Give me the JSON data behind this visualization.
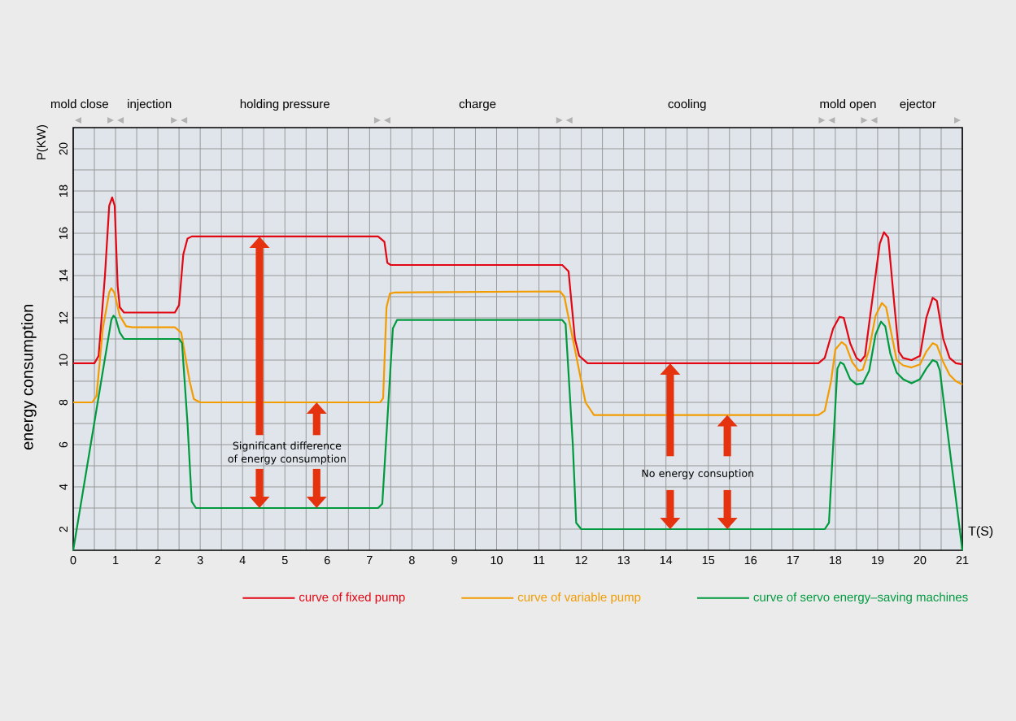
{
  "chart_data": {
    "type": "line",
    "xlabel": "T(S)",
    "ylabel": "energy consumption",
    "xlim": [
      0,
      21
    ],
    "ylim": [
      1,
      21
    ],
    "xticks": [
      0,
      1,
      2,
      3,
      4,
      5,
      6,
      7,
      8,
      9,
      10,
      11,
      12,
      13,
      14,
      15,
      16,
      17,
      18,
      19,
      20,
      21
    ],
    "yticks": [
      2,
      4,
      6,
      8,
      10,
      12,
      14,
      16,
      18,
      20
    ],
    "grid": true,
    "legend": "bottom",
    "marker": "none",
    "line_style": "solid",
    "series": [
      {
        "name": "curve of fixed pump",
        "color": "#e30613",
        "x": [
          0,
          0.5,
          0.6,
          0.75,
          0.85,
          0.92,
          0.98,
          1.05,
          1.1,
          1.2,
          2.4,
          2.5,
          2.6,
          2.7,
          2.8,
          7.2,
          7.35,
          7.42,
          7.5,
          11.55,
          11.7,
          11.85,
          11.95,
          12.15,
          17.6,
          17.75,
          17.95,
          18.1,
          18.2,
          18.35,
          18.5,
          18.6,
          18.7,
          18.85,
          19.05,
          19.15,
          19.25,
          19.4,
          19.5,
          19.6,
          19.8,
          20.0,
          20.15,
          20.3,
          20.4,
          20.55,
          20.7,
          20.85,
          21
        ],
        "values": [
          9.85,
          9.85,
          10.2,
          14,
          17.3,
          17.7,
          17.3,
          13.5,
          12.5,
          12.25,
          12.25,
          12.6,
          15,
          15.75,
          15.85,
          15.85,
          15.6,
          14.6,
          14.5,
          14.5,
          14.2,
          11,
          10.2,
          9.85,
          9.85,
          10.1,
          11.5,
          12.05,
          12,
          10.8,
          10.1,
          9.95,
          10.2,
          12.5,
          15.5,
          16.05,
          15.8,
          12.5,
          10.4,
          10.1,
          10.0,
          10.2,
          12,
          12.95,
          12.8,
          11,
          10.1,
          9.85,
          9.8
        ]
      },
      {
        "name": "curve of variable pump",
        "color": "#f39c00",
        "x": [
          0,
          0.45,
          0.55,
          0.7,
          0.85,
          0.9,
          0.97,
          1.1,
          1.25,
          1.4,
          2.4,
          2.55,
          2.75,
          2.85,
          3.0,
          7.25,
          7.32,
          7.4,
          7.48,
          7.6,
          11.5,
          11.6,
          11.8,
          12.1,
          12.3,
          17.6,
          17.75,
          17.9,
          18.0,
          18.15,
          18.25,
          18.4,
          18.55,
          18.65,
          18.8,
          18.95,
          19.1,
          19.2,
          19.35,
          19.45,
          19.6,
          19.8,
          20.0,
          20.15,
          20.3,
          20.4,
          20.55,
          20.7,
          20.85,
          21
        ],
        "values": [
          8,
          8,
          8.3,
          11.5,
          13.2,
          13.4,
          13.2,
          12.1,
          11.6,
          11.55,
          11.55,
          11.3,
          9,
          8.15,
          8.0,
          8.0,
          8.2,
          12.5,
          13.15,
          13.2,
          13.25,
          13.0,
          11,
          8,
          7.4,
          7.4,
          7.6,
          9,
          10.5,
          10.85,
          10.7,
          9.9,
          9.5,
          9.55,
          10.5,
          12.1,
          12.7,
          12.5,
          11,
          10.0,
          9.75,
          9.65,
          9.8,
          10.4,
          10.8,
          10.7,
          9.9,
          9.3,
          9.0,
          8.85
        ]
      },
      {
        "name": "curve of servo energy–saving machines",
        "color": "#009a3e",
        "x": [
          0,
          0.9,
          0.95,
          1.0,
          1.1,
          1.2,
          2.5,
          2.57,
          2.7,
          2.8,
          2.9,
          7.2,
          7.3,
          7.4,
          7.55,
          7.65,
          11.55,
          11.63,
          11.8,
          11.88,
          12.0,
          17.75,
          17.85,
          17.95,
          18.05,
          18.12,
          18.2,
          18.35,
          18.5,
          18.65,
          18.8,
          18.95,
          19.08,
          19.18,
          19.3,
          19.45,
          19.6,
          19.8,
          20.0,
          20.15,
          20.3,
          20.4,
          20.47,
          21
        ],
        "values": [
          1,
          11.9,
          12.1,
          12.0,
          11.3,
          11.0,
          11.0,
          10.8,
          7,
          3.3,
          3.0,
          3.0,
          3.2,
          6.5,
          11.5,
          11.9,
          11.9,
          11.7,
          6,
          2.3,
          2.0,
          2.0,
          2.3,
          6,
          9.6,
          9.9,
          9.8,
          9.1,
          8.85,
          8.9,
          9.5,
          11.2,
          11.82,
          11.6,
          10.3,
          9.4,
          9.1,
          8.9,
          9.1,
          9.6,
          10.0,
          9.9,
          9.5,
          1
        ]
      }
    ],
    "annotations": [
      "P(KW)",
      "Significant difference of energy consumption",
      "No energy consuption",
      "mold close",
      "injection",
      "holding pressure",
      "charge",
      "cooling",
      "mold open",
      "ejector"
    ]
  }
}
